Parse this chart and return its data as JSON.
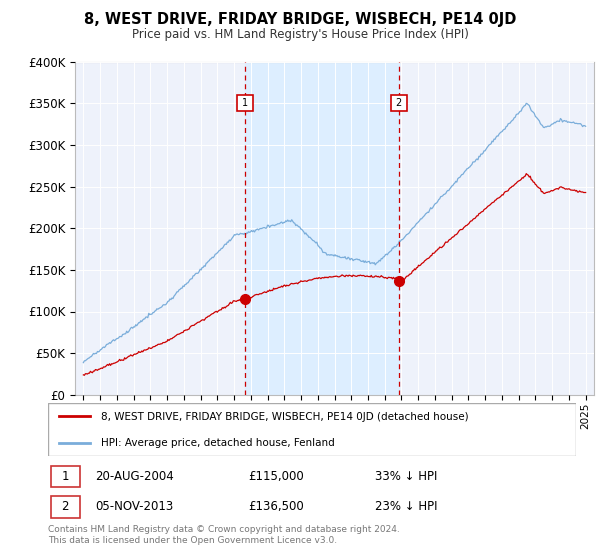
{
  "title": "8, WEST DRIVE, FRIDAY BRIDGE, WISBECH, PE14 0JD",
  "subtitle": "Price paid vs. HM Land Registry's House Price Index (HPI)",
  "legend_line1": "8, WEST DRIVE, FRIDAY BRIDGE, WISBECH, PE14 0JD (detached house)",
  "legend_line2": "HPI: Average price, detached house, Fenland",
  "annotation1_label": "1",
  "annotation1_date": "20-AUG-2004",
  "annotation1_price": "£115,000",
  "annotation1_hpi": "33% ↓ HPI",
  "annotation2_label": "2",
  "annotation2_date": "05-NOV-2013",
  "annotation2_price": "£136,500",
  "annotation2_hpi": "23% ↓ HPI",
  "footer": "Contains HM Land Registry data © Crown copyright and database right 2024.\nThis data is licensed under the Open Government Licence v3.0.",
  "red_color": "#cc0000",
  "blue_color": "#7aadda",
  "shade_color": "#ddeeff",
  "marker1_x": 2004.64,
  "marker2_x": 2013.84,
  "marker1_y": 115000,
  "marker2_y": 136500,
  "ylim": [
    0,
    400000
  ],
  "yticks": [
    0,
    50000,
    100000,
    150000,
    200000,
    250000,
    300000,
    350000,
    400000
  ],
  "ytick_labels": [
    "£0",
    "£50K",
    "£100K",
    "£150K",
    "£200K",
    "£250K",
    "£300K",
    "£350K",
    "£400K"
  ],
  "xmin": 1994.5,
  "xmax": 2025.5,
  "bg_color": "#eef2fb"
}
